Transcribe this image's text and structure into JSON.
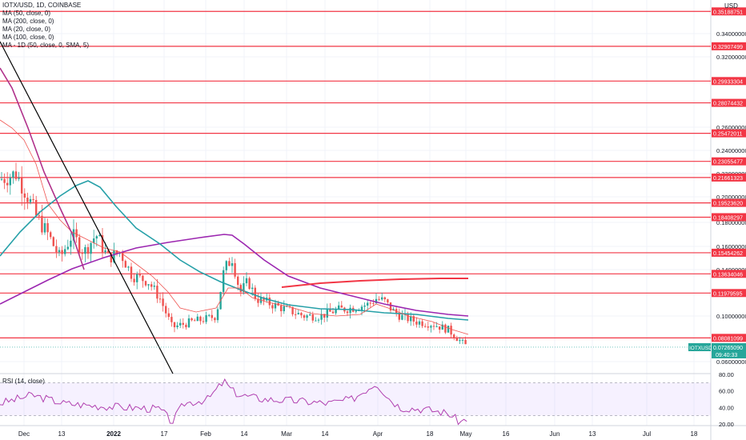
{
  "legend": {
    "title": "IOTX/USD, 1D, COINBASE",
    "studies": [
      "MA (50, close, 0)",
      "MA (200, close, 0)",
      "MA (20, close, 0)",
      "MA (100, close, 0)",
      "MA - 1D (50, close, 0, SMA, 5)"
    ]
  },
  "rsi_legend": "RSI (14, close)",
  "price_axis": {
    "currency": "USD",
    "ticks": [
      "0.34000000",
      "0.32000000",
      "0.26000000",
      "0.24000000",
      "0.22000000",
      "0.20000000",
      "0.18000000",
      "0.16000000",
      "0.14000000",
      "0.10000000",
      "0.06000000"
    ],
    "tick_values": [
      0.34,
      0.32,
      0.26,
      0.24,
      0.22,
      0.2,
      0.18,
      0.16,
      0.14,
      0.1,
      0.06
    ]
  },
  "level_lines": [
    {
      "label": "0.35188751",
      "value": 0.35188751
    },
    {
      "label": "0.32907499",
      "value": 0.32907499
    },
    {
      "label": "0.29933304",
      "value": 0.29933304
    },
    {
      "label": "0.28074432",
      "value": 0.28074432
    },
    {
      "label": "0.25472011",
      "value": 0.25472011
    },
    {
      "label": "0.23055477",
      "value": 0.23055477
    },
    {
      "label": "0.21661323",
      "value": 0.21661323
    },
    {
      "label": "0.19523620",
      "value": 0.1952362
    },
    {
      "label": "0.18408297",
      "value": 0.18408297
    },
    {
      "label": "0.15454262",
      "value": 0.15454262
    },
    {
      "label": "0.13634046",
      "value": 0.13634046
    },
    {
      "label": "0.11979595",
      "value": 0.11979595
    },
    {
      "label": "0.08081099",
      "value": 0.08081099
    }
  ],
  "current_price": {
    "symbol": "IOTXUSD",
    "price": "0.07265090",
    "value": 0.0726509,
    "countdown": "09:40:33"
  },
  "time_axis": [
    "Dec",
    "13",
    "2022",
    "17",
    "Feb",
    "14",
    "Mar",
    "14",
    "Apr",
    "18",
    "May",
    "16",
    "Jun",
    "13",
    "Jul",
    "18"
  ],
  "rsi_axis": {
    "ticks": [
      "80.00",
      "60.00",
      "40.00",
      "20.00"
    ],
    "tick_values": [
      80,
      60,
      40,
      20
    ],
    "upper_band": 70,
    "lower_band": 30
  },
  "colors": {
    "up": "#26a69a",
    "down": "#ef5350",
    "level": "#f23645",
    "ma_purple": "#9c27b0",
    "ma_teal": "#26a0a8",
    "ma_pink": "#ef5350",
    "ma_magenta": "#b0308a",
    "trend_black": "#000000",
    "ma_red_flat": "#f23645",
    "rsi_line": "#b040b0",
    "rsi_band": "rgba(179,136,255,0.12)"
  }
}
